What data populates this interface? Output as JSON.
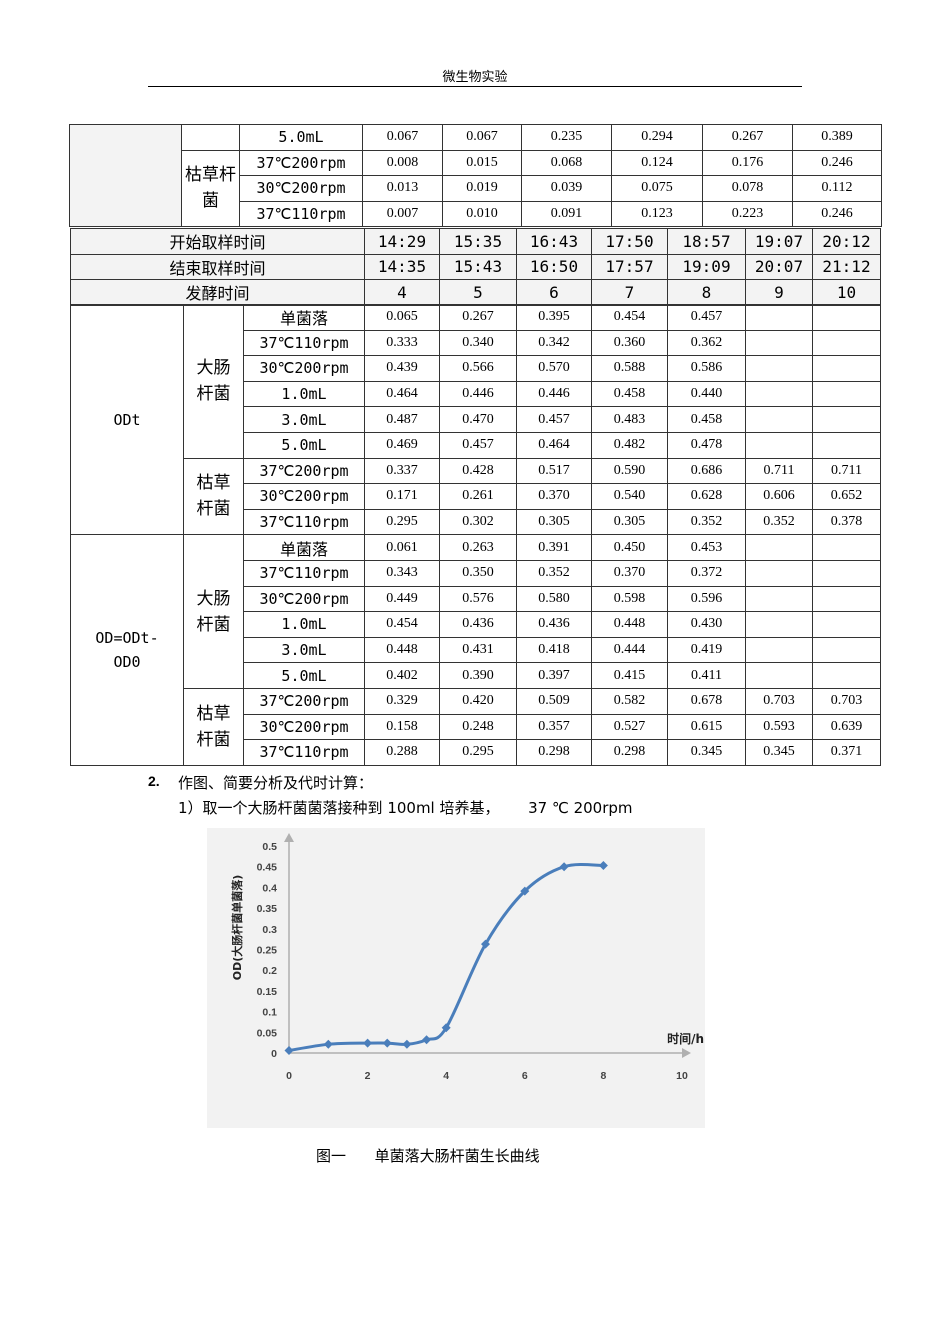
{
  "header": {
    "title": "微生物实验"
  },
  "table_top": {
    "rows": [
      {
        "cond": "5.0mL",
        "values": [
          "0.067",
          "0.067",
          "0.235",
          "0.294",
          "0.267",
          "0.389"
        ]
      },
      {
        "cond": "37℃200rpm",
        "values": [
          "0.008",
          "0.015",
          "0.068",
          "0.124",
          "0.176",
          "0.246"
        ]
      },
      {
        "cond": "30℃200rpm",
        "values": [
          "0.013",
          "0.019",
          "0.039",
          "0.075",
          "0.078",
          "0.112"
        ]
      },
      {
        "cond": "37℃110rpm",
        "values": [
          "0.007",
          "0.010",
          "0.091",
          "0.123",
          "0.223",
          "0.246"
        ]
      }
    ],
    "group_label": "枯草杆菌"
  },
  "table_time": {
    "rows": [
      {
        "label": "开始取样时间",
        "values": [
          "14:29",
          "15:35",
          "16:43",
          "17:50",
          "18:57",
          "19:07",
          "20:12"
        ]
      },
      {
        "label": "结束取样时间",
        "values": [
          "14:35",
          "15:43",
          "16:50",
          "17:57",
          "19:09",
          "20:07",
          "21:12"
        ]
      },
      {
        "label": "发酵时间",
        "values": [
          "4",
          "5",
          "6",
          "7",
          "8",
          "9",
          "10"
        ]
      }
    ]
  },
  "table_main": {
    "sections": [
      {
        "label": "ODt",
        "groups": [
          {
            "name": "大肠杆菌",
            "rows": [
              {
                "cond": "单菌落",
                "values": [
                  "0.065",
                  "0.267",
                  "0.395",
                  "0.454",
                  "0.457",
                  "",
                  ""
                ]
              },
              {
                "cond": "37℃110rpm",
                "values": [
                  "0.333",
                  "0.340",
                  "0.342",
                  "0.360",
                  "0.362",
                  "",
                  ""
                ]
              },
              {
                "cond": "30℃200rpm",
                "values": [
                  "0.439",
                  "0.566",
                  "0.570",
                  "0.588",
                  "0.586",
                  "",
                  ""
                ]
              },
              {
                "cond": "1.0mL",
                "values": [
                  "0.464",
                  "0.446",
                  "0.446",
                  "0.458",
                  "0.440",
                  "",
                  ""
                ]
              },
              {
                "cond": "3.0mL",
                "values": [
                  "0.487",
                  "0.470",
                  "0.457",
                  "0.483",
                  "0.458",
                  "",
                  ""
                ]
              },
              {
                "cond": "5.0mL",
                "values": [
                  "0.469",
                  "0.457",
                  "0.464",
                  "0.482",
                  "0.478",
                  "",
                  ""
                ]
              }
            ]
          },
          {
            "name": "枯草杆菌",
            "rows": [
              {
                "cond": "37℃200rpm",
                "values": [
                  "0.337",
                  "0.428",
                  "0.517",
                  "0.590",
                  "0.686",
                  "0.711",
                  "0.711"
                ]
              },
              {
                "cond": "30℃200rpm",
                "values": [
                  "0.171",
                  "0.261",
                  "0.370",
                  "0.540",
                  "0.628",
                  "0.606",
                  "0.652"
                ]
              },
              {
                "cond": "37℃110rpm",
                "values": [
                  "0.295",
                  "0.302",
                  "0.305",
                  "0.305",
                  "0.352",
                  "0.352",
                  "0.378"
                ]
              }
            ]
          }
        ]
      },
      {
        "label": "OD=ODt-OD0",
        "groups": [
          {
            "name": "大肠杆菌",
            "rows": [
              {
                "cond": "单菌落",
                "values": [
                  "0.061",
                  "0.263",
                  "0.391",
                  "0.450",
                  "0.453",
                  "",
                  ""
                ]
              },
              {
                "cond": "37℃110rpm",
                "values": [
                  "0.343",
                  "0.350",
                  "0.352",
                  "0.370",
                  "0.372",
                  "",
                  ""
                ]
              },
              {
                "cond": "30℃200rpm",
                "values": [
                  "0.449",
                  "0.576",
                  "0.580",
                  "0.598",
                  "0.596",
                  "",
                  ""
                ]
              },
              {
                "cond": "1.0mL",
                "values": [
                  "0.454",
                  "0.436",
                  "0.436",
                  "0.448",
                  "0.430",
                  "",
                  ""
                ]
              },
              {
                "cond": "3.0mL",
                "values": [
                  "0.448",
                  "0.431",
                  "0.418",
                  "0.444",
                  "0.419",
                  "",
                  ""
                ]
              },
              {
                "cond": "5.0mL",
                "values": [
                  "0.402",
                  "0.390",
                  "0.397",
                  "0.415",
                  "0.411",
                  "",
                  ""
                ]
              }
            ]
          },
          {
            "name": "枯草杆菌",
            "rows": [
              {
                "cond": "37℃200rpm",
                "values": [
                  "0.329",
                  "0.420",
                  "0.509",
                  "0.582",
                  "0.678",
                  "0.703",
                  "0.703"
                ]
              },
              {
                "cond": "30℃200rpm",
                "values": [
                  "0.158",
                  "0.248",
                  "0.357",
                  "0.527",
                  "0.615",
                  "0.593",
                  "0.639"
                ]
              },
              {
                "cond": "37℃110rpm",
                "values": [
                  "0.288",
                  "0.295",
                  "0.298",
                  "0.298",
                  "0.345",
                  "0.345",
                  "0.371"
                ]
              }
            ]
          }
        ]
      }
    ]
  },
  "section": {
    "number": "2.",
    "title": "作图、简要分析及代时计算：",
    "sub": "1）取一个大肠杆菌菌落接种到 100ml 培养基，      37 ℃ 200rpm"
  },
  "chart_data": {
    "type": "line",
    "title": "",
    "xlabel": "时间/h",
    "ylabel": "OD(大肠杆菌单菌落)",
    "xlim": [
      0,
      10
    ],
    "ylim": [
      0,
      0.5
    ],
    "xticks": [
      "0",
      "2",
      "4",
      "6",
      "8",
      "10"
    ],
    "yticks": [
      "0",
      "0.05",
      "0.1",
      "0.15",
      "0.2",
      "0.25",
      "0.3",
      "0.35",
      "0.4",
      "0.45",
      "0.5"
    ],
    "grid": false,
    "color": "#4a7ebb",
    "series": [
      {
        "x": [
          0,
          1,
          2,
          2.5,
          3,
          3.5,
          4,
          5,
          6,
          7,
          8
        ],
        "y": [
          0.006,
          0.021,
          0.024,
          0.024,
          0.021,
          0.032,
          0.061,
          0.263,
          0.391,
          0.45,
          0.453
        ]
      }
    ]
  },
  "caption": "图一      单菌落大肠杆菌生长曲线"
}
